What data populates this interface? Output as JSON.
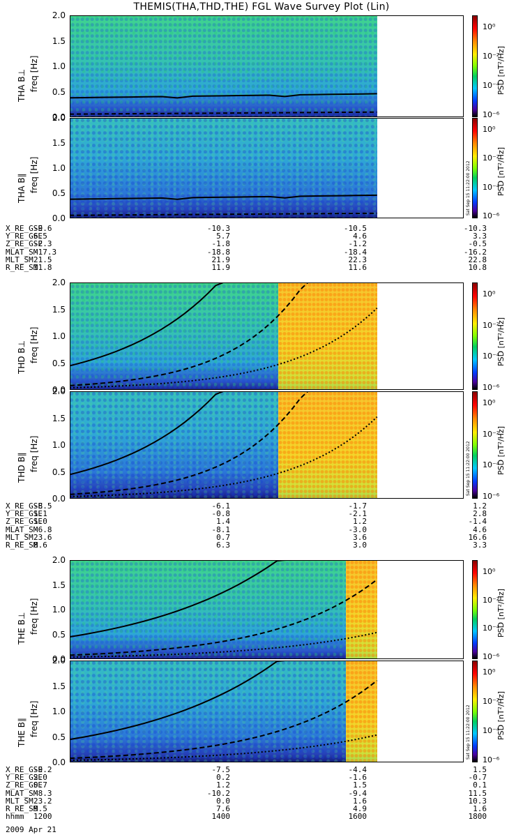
{
  "title": "THEMIS(THA,THD,THE) FGL Wave Survey Plot (Lin)",
  "colorbar": {
    "label": "PSD [nT²/Hz]",
    "ticks": [
      "10⁰",
      "10⁻²",
      "10⁻⁴",
      "10⁻⁶"
    ],
    "stamp": "Sat Sep 15 11:22:00 2012"
  },
  "chart_data": [
    {
      "type": "heatmap",
      "panel": "tha_bperp",
      "ylabel_probe": "THA B⊥",
      "ylabel_unit": "freq [Hz]",
      "ylim": [
        0,
        2
      ],
      "yticks": [
        "2.0",
        "1.5",
        "1.0",
        "0.5",
        "0.0"
      ],
      "data_end_frac": 0.78,
      "hot_start_frac": null,
      "curves": "solid + dashed near 0.4 Hz / 0.05 Hz"
    },
    {
      "type": "heatmap",
      "panel": "tha_bpar",
      "ylabel_probe": "THA B∥",
      "ylabel_unit": "freq [Hz]",
      "ylim": [
        0,
        2
      ],
      "yticks": [
        "2.0",
        "1.5",
        "1.0",
        "0.5",
        "0.0"
      ],
      "data_end_frac": 0.78
    },
    {
      "type": "heatmap",
      "panel": "thd_bperp",
      "ylabel_probe": "THD B⊥",
      "ylabel_unit": "freq [Hz]",
      "ylim": [
        0,
        2
      ],
      "yticks": [
        "2.0",
        "1.5",
        "1.0",
        "0.5",
        "0.0"
      ],
      "data_end_frac": 0.78,
      "hot_start_frac": 0.53
    },
    {
      "type": "heatmap",
      "panel": "thd_bpar",
      "ylabel_probe": "THD B∥",
      "ylabel_unit": "freq [Hz]",
      "ylim": [
        0,
        2
      ],
      "yticks": [
        "2.0",
        "1.5",
        "1.0",
        "0.5",
        "0.0"
      ],
      "data_end_frac": 0.78,
      "hot_start_frac": 0.53
    },
    {
      "type": "heatmap",
      "panel": "the_bperp",
      "ylabel_probe": "THE B⊥",
      "ylabel_unit": "freq [Hz]",
      "ylim": [
        0,
        2
      ],
      "yticks": [
        "2.0",
        "1.5",
        "1.0",
        "0.5",
        "0.0"
      ],
      "data_end_frac": 0.78,
      "hot_start_frac": 0.7
    },
    {
      "type": "heatmap",
      "panel": "the_bpar",
      "ylabel_probe": "THE B∥",
      "ylabel_unit": "freq [Hz]",
      "ylim": [
        0,
        2
      ],
      "yticks": [
        "2.0",
        "1.5",
        "1.0",
        "0.5",
        "0.0"
      ],
      "data_end_frac": 0.78,
      "hot_start_frac": 0.7
    }
  ],
  "ephemeris": [
    {
      "rows": [
        {
          "label": "X_RE_GSE",
          "values": [
            "-9.6",
            "-10.3",
            "-10.5",
            "-10.3"
          ]
        },
        {
          "label": "Y_RE_GSE",
          "values": [
            "6.5",
            "5.7",
            "4.6",
            "3.3"
          ]
        },
        {
          "label": "Z_RE_GSE",
          "values": [
            "-2.3",
            "-1.8",
            "-1.2",
            "-0.5"
          ]
        },
        {
          "label": "MLAT_SM",
          "values": [
            "-17.3",
            "-18.8",
            "-18.4",
            "-16.2"
          ]
        },
        {
          "label": "MLT_SM",
          "values": [
            "21.5",
            "21.9",
            "22.3",
            "22.8"
          ]
        },
        {
          "label": "R_RE_SM",
          "values": [
            "11.8",
            "11.9",
            "11.6",
            "10.8"
          ]
        }
      ]
    },
    {
      "rows": [
        {
          "label": "X_RE_GSE",
          "values": [
            "-8.5",
            "-6.1",
            "-1.7",
            "1.2"
          ]
        },
        {
          "label": "Y_RE_GSE",
          "values": [
            "1.1",
            "-0.8",
            "-2.1",
            "2.8"
          ]
        },
        {
          "label": "Z_RE_GSE",
          "values": [
            "1.0",
            "1.4",
            "1.2",
            "-1.4"
          ]
        },
        {
          "label": "MLAT_SM",
          "values": [
            "-6.8",
            "-8.1",
            "-3.0",
            "4.6"
          ]
        },
        {
          "label": "MLT_SM",
          "values": [
            "23.6",
            "0.7",
            "3.6",
            "16.6"
          ]
        },
        {
          "label": "R_RE_SM",
          "values": [
            "8.6",
            "6.3",
            "3.0",
            "3.3"
          ]
        }
      ]
    },
    {
      "rows": [
        {
          "label": "X_RE_GSE",
          "values": [
            "-9.2",
            "-7.5",
            "-4.4",
            "1.5"
          ]
        },
        {
          "label": "Y_RE_GSE",
          "values": [
            "2.0",
            "0.2",
            "-1.6",
            "-0.7"
          ]
        },
        {
          "label": "Z_RE_GSE",
          "values": [
            "0.7",
            "1.2",
            "1.5",
            "0.1"
          ]
        },
        {
          "label": "MLAT_SM",
          "values": [
            "-8.3",
            "-10.2",
            "-9.4",
            "11.5"
          ]
        },
        {
          "label": "MLT_SM",
          "values": [
            "23.2",
            "0.0",
            "1.6",
            "10.3"
          ]
        },
        {
          "label": "R_RE_SM",
          "values": [
            "9.5",
            "7.6",
            "4.9",
            "1.6"
          ]
        },
        {
          "label": "hhmm",
          "values": [
            "1200",
            "1400",
            "1600",
            "1800"
          ]
        }
      ]
    }
  ],
  "date": "2009 Apr 21",
  "colors": {
    "low": "#1b1f88",
    "mid": "#35c3b1",
    "high": "#f3d52a",
    "line": "#000000"
  }
}
